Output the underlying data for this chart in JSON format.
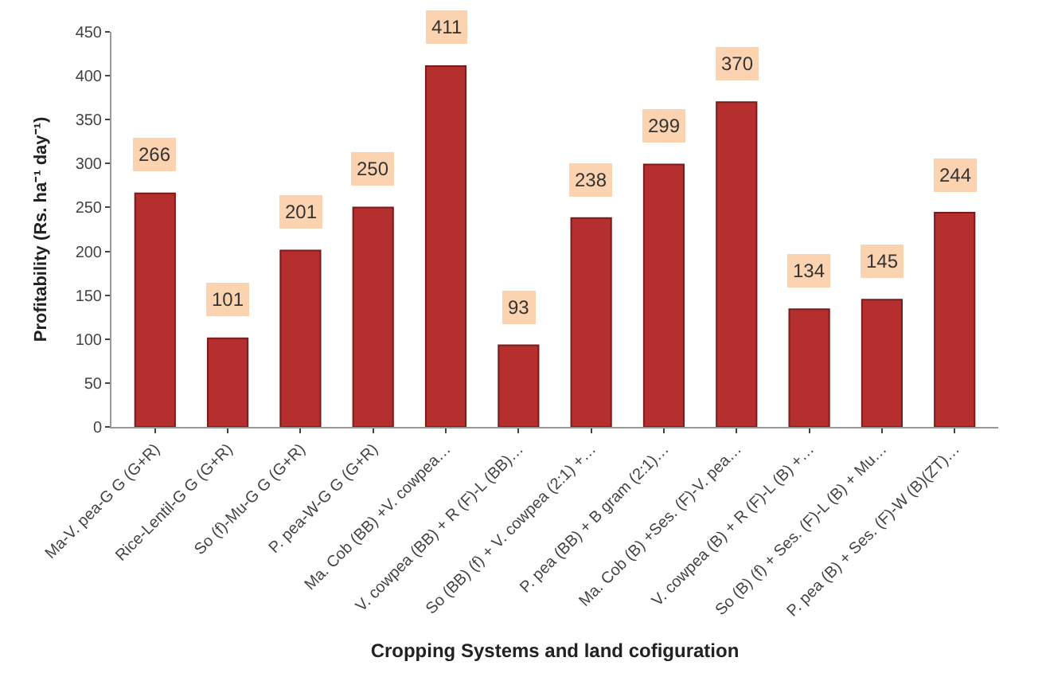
{
  "chart_data": {
    "type": "bar",
    "xlabel": "Cropping Systems and land cofiguration",
    "ylabel": "Profitability (Rs. ha⁻¹ day⁻¹)",
    "categories": [
      "Ma-V. pea-G G (G+R)",
      "Rice-Lentil-G G (G+R)",
      "So (f)-Mu-G G (G+R)",
      "P. pea-W-G G (G+R)",
      "Ma. Cob (BB) +V. cowpea…",
      "V. cowpea (BB) + R (F)-L (BB)…",
      "So (BB) (f) + V. cowpea (2:1) +…",
      "P. pea (BB) + B gram (2:1)…",
      "Ma. Cob (B) +Ses. (F)-V. pea…",
      "V. cowpea (B) + R (F)-L (B) +…",
      "So (B) (f) + Ses. (F)-L (B) + Mu…",
      "P. pea (B) + Ses. (F)-W (B)(ZT)…"
    ],
    "values": [
      266,
      101,
      201,
      250,
      411,
      93,
      238,
      299,
      370,
      134,
      145,
      244
    ],
    "color": "#b52f2f",
    "data_labels": true,
    "ylim": [
      0,
      450
    ],
    "yticks": [
      0,
      50,
      100,
      150,
      200,
      250,
      300,
      350,
      400,
      450
    ],
    "legend": false
  }
}
